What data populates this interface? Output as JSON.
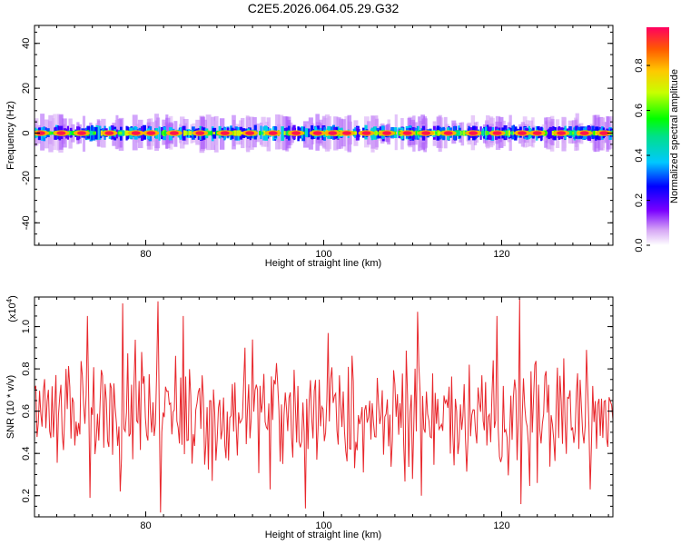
{
  "title": "C2E5.2026.064.05.29.G32",
  "colors": {
    "snr_line": "#e8262b",
    "frame": "#000000",
    "spectrum_low": "#c8a0f0",
    "spectrum_high": "#ff1010"
  },
  "chart_data": [
    {
      "type": "heatmap",
      "name": "spectrogram",
      "xlabel": "Height of straight line (km)",
      "ylabel": "Frequency (Hz)",
      "xlim": [
        67.5,
        132.5
      ],
      "ylim": [
        -50,
        48
      ],
      "xticks": [
        80,
        100,
        120
      ],
      "yticks": [
        -40,
        -20,
        0,
        20,
        40
      ],
      "band_center_hz": 0,
      "band_halfwidth_hz": 3,
      "hotspots_km": [
        68.2,
        70.5,
        72.8,
        75.9,
        78.9,
        80.6,
        83.2,
        86.1,
        88.9,
        91.7,
        94.3,
        96.9,
        99.3,
        101.0,
        102.6,
        104.8,
        107.1,
        109.4,
        111.5,
        114.0,
        116.8,
        119.5,
        122.3,
        124.0,
        126.7,
        129.3,
        131.5
      ],
      "colorbar": {
        "label": "Normalized spectral amplitude",
        "range": [
          0,
          0.97
        ],
        "ticks": [
          0.0,
          0.2,
          0.4,
          0.6,
          0.8
        ]
      }
    },
    {
      "type": "line",
      "name": "snr",
      "xlabel": "Height of straight line (km)",
      "ylabel": "SNR (10 * v/v)",
      "ylabel_scale": "(x10",
      "ylabel_scale_exp": "4",
      "ylabel_scale_close": ")",
      "xlim": [
        67.5,
        132.5
      ],
      "ylim": [
        0.1,
        1.14
      ],
      "xticks": [
        80,
        100,
        120
      ],
      "yticks": [
        0.2,
        0.4,
        0.6,
        0.8,
        1.0
      ],
      "n_points": 460,
      "mean": 0.58,
      "peaks": [
        {
          "x": 67.6,
          "y": 0.72
        },
        {
          "x": 71.0,
          "y": 0.8
        },
        {
          "x": 73.5,
          "y": 1.05
        },
        {
          "x": 73.7,
          "y": 0.19
        },
        {
          "x": 77.4,
          "y": 1.11
        },
        {
          "x": 77.2,
          "y": 0.22
        },
        {
          "x": 79.6,
          "y": 0.88
        },
        {
          "x": 81.4,
          "y": 1.12
        },
        {
          "x": 81.7,
          "y": 0.12
        },
        {
          "x": 84.2,
          "y": 1.05
        },
        {
          "x": 87.5,
          "y": 0.27
        },
        {
          "x": 91.2,
          "y": 0.9
        },
        {
          "x": 94.0,
          "y": 0.23
        },
        {
          "x": 98.0,
          "y": 0.14
        },
        {
          "x": 100.5,
          "y": 0.97
        },
        {
          "x": 110.5,
          "y": 1.07
        },
        {
          "x": 111.0,
          "y": 0.2
        },
        {
          "x": 116.3,
          "y": 0.82
        },
        {
          "x": 119.5,
          "y": 1.05
        },
        {
          "x": 122.0,
          "y": 1.13
        },
        {
          "x": 122.2,
          "y": 0.16
        },
        {
          "x": 124.0,
          "y": 0.26
        },
        {
          "x": 127.0,
          "y": 0.85
        },
        {
          "x": 129.5,
          "y": 0.89
        },
        {
          "x": 130.0,
          "y": 0.23
        }
      ]
    }
  ]
}
